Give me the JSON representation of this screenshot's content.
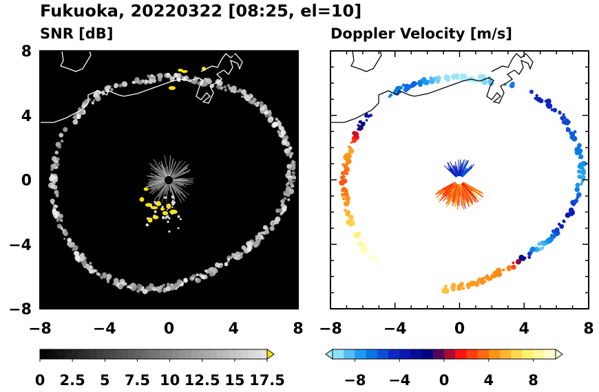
{
  "title": "Fukuoka, 20220322 [08:25, el=10]",
  "chart_data": [
    {
      "type": "heatmap",
      "title": "SNR [dB]",
      "xlim": [
        -8,
        8
      ],
      "ylim": [
        -8,
        8
      ],
      "xticks": [
        "−8",
        "−4",
        "0",
        "4",
        "8"
      ],
      "yticks": [
        "8",
        "4",
        "0",
        "−4",
        "−8"
      ],
      "colorbar": {
        "range": [
          0,
          17.5
        ],
        "ticks": [
          "0",
          "2.5",
          "5",
          "7.5",
          "10",
          "12.5",
          "15",
          "17.5"
        ],
        "extend": "max",
        "colors": [
          "#000000",
          "#e6e6e6"
        ],
        "extend_color": "#f5e500"
      }
    },
    {
      "type": "heatmap",
      "title": "Doppler Velocity [m/s]",
      "xlim": [
        -8,
        8
      ],
      "ylim": [
        -8,
        8
      ],
      "xticks": [
        "−8",
        "−4",
        "0",
        "4",
        "8"
      ],
      "yticks": [],
      "colorbar": {
        "range": [
          -10,
          10
        ],
        "ticks": [
          "−8",
          "−4",
          "0",
          "4",
          "8"
        ],
        "extend": "both",
        "colors": [
          "#aaf0ff",
          "#0a8ff0",
          "#1020c0",
          "#000080",
          "#ff1010",
          "#ff8a10",
          "#fff060",
          "#ffffe0"
        ]
      }
    }
  ]
}
